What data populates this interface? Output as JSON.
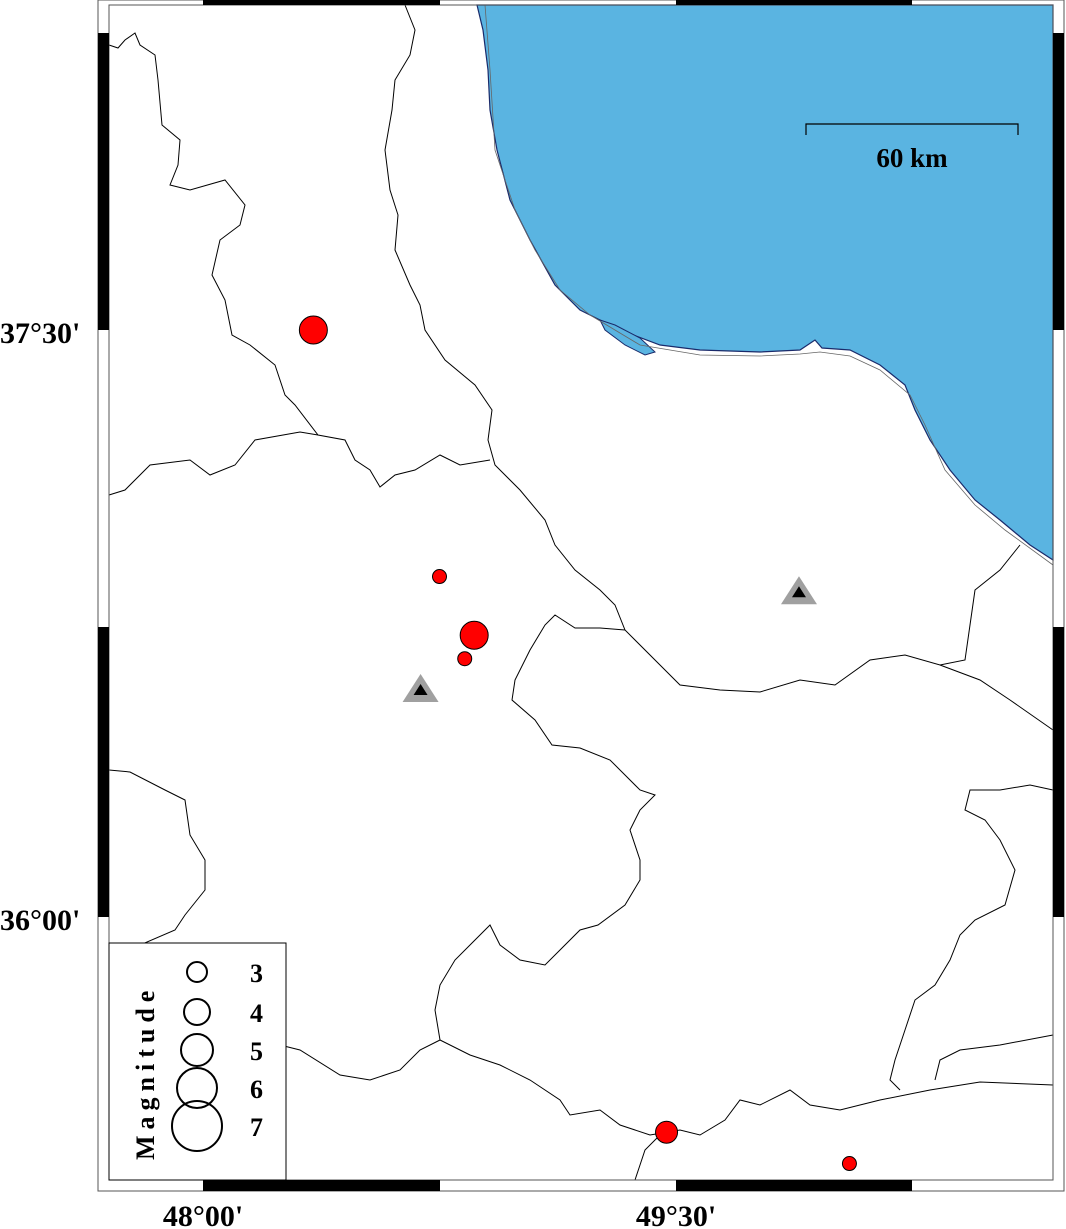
{
  "map": {
    "colors": {
      "sea": "#5ab4e1",
      "event": "#ff0000",
      "volcano_outer": "#a0a0a0",
      "volcano_inner": "#000000",
      "border": "#000000"
    },
    "lat_labels": [
      "37°30'",
      "36°00'"
    ],
    "lon_labels": [
      "48°00'",
      "49°30'"
    ],
    "scale_bar": {
      "label": "60 km"
    },
    "legend": {
      "title": "Magnitude",
      "entries": [
        {
          "label": "3",
          "magnitude": 3
        },
        {
          "label": "4",
          "magnitude": 4
        },
        {
          "label": "5",
          "magnitude": 5
        },
        {
          "label": "6",
          "magnitude": 6
        },
        {
          "label": "7",
          "magnitude": 7
        }
      ]
    },
    "events": [
      {
        "lon": 48.35,
        "lat": 37.5,
        "size": "large"
      },
      {
        "lon": 48.75,
        "lat": 36.87,
        "size": "small"
      },
      {
        "lon": 48.86,
        "lat": 36.72,
        "size": "large"
      },
      {
        "lon": 48.83,
        "lat": 36.66,
        "size": "small"
      },
      {
        "lon": 49.47,
        "lat": 35.45,
        "size": "medium"
      },
      {
        "lon": 50.05,
        "lat": 35.37,
        "size": "small"
      }
    ],
    "volcanoes": [
      {
        "lon": 49.89,
        "lat": 36.83
      },
      {
        "lon": 48.69,
        "lat": 36.58
      }
    ]
  }
}
